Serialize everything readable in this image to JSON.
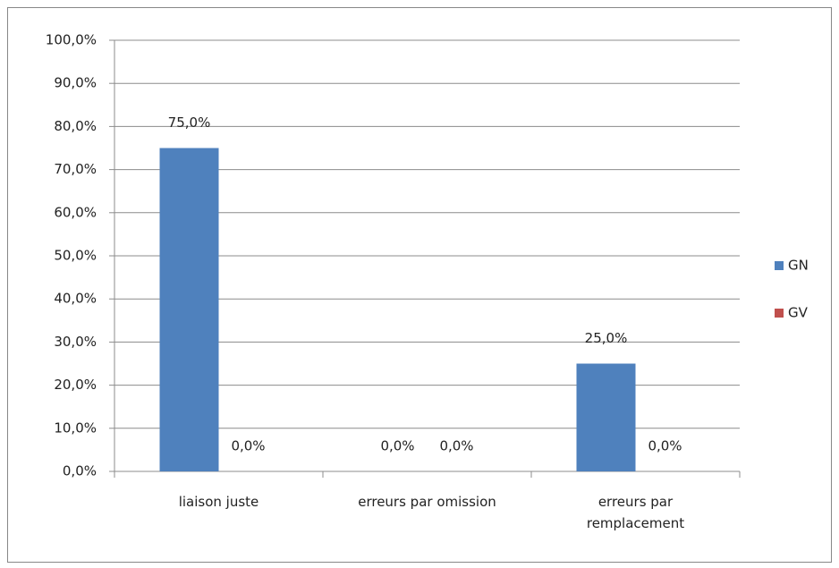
{
  "chart_data": {
    "type": "bar",
    "categories": [
      "liaison juste",
      "erreurs par omission",
      "erreurs par remplacement"
    ],
    "series": [
      {
        "name": "GN",
        "color": "#4f81bd",
        "values": [
          75,
          0,
          25
        ],
        "value_labels": [
          "75,0%",
          "0,0%",
          "25,0%"
        ]
      },
      {
        "name": "GV",
        "color": "#c0504d",
        "values": [
          0,
          0,
          0
        ],
        "value_labels": [
          "0,0%",
          "0,0%",
          "0,0%"
        ]
      }
    ],
    "ylim": [
      0,
      100
    ],
    "yticks": [
      {
        "value": 0,
        "label": "0,0%"
      },
      {
        "value": 10,
        "label": "10,0%"
      },
      {
        "value": 20,
        "label": "20,0%"
      },
      {
        "value": 30,
        "label": "30,0%"
      },
      {
        "value": 40,
        "label": "40,0%"
      },
      {
        "value": 50,
        "label": "50,0%"
      },
      {
        "value": 60,
        "label": "60,0%"
      },
      {
        "value": 70,
        "label": "70,0%"
      },
      {
        "value": 80,
        "label": "80,0%"
      },
      {
        "value": 90,
        "label": "90,0%"
      },
      {
        "value": 100,
        "label": "100,0%"
      }
    ],
    "grid": true,
    "legend": "right"
  }
}
